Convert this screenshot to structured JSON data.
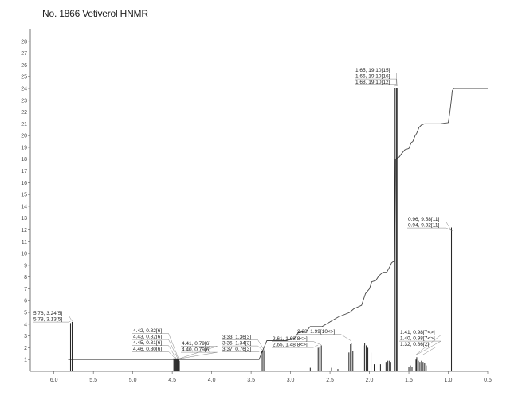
{
  "title": "No. 1866 Vetiverol HNMR",
  "chart_data": {
    "type": "line",
    "title": "No. 1866 Vetiverol HNMR",
    "xlabel": "",
    "ylabel": "",
    "xlim": [
      6.3,
      0.5
    ],
    "ylim": [
      0,
      29
    ],
    "x_ticks": [
      "6.0",
      "5.5",
      "5.0",
      "4.5",
      "4.0",
      "3.5",
      "3.0",
      "2.5",
      "2.0",
      "1.5",
      "1.0",
      "0.5"
    ],
    "y_ticks": [
      "1",
      "2",
      "3",
      "4",
      "5",
      "6",
      "7",
      "8",
      "9",
      "10",
      "11",
      "12",
      "13",
      "14",
      "15",
      "16",
      "17",
      "18",
      "19",
      "20",
      "21",
      "22",
      "23",
      "24",
      "25",
      "26",
      "27",
      "28"
    ],
    "grid": false,
    "peaks": [
      {
        "x": 5.79,
        "y": 4.1
      },
      {
        "x": 5.77,
        "y": 4.2
      },
      {
        "x": 4.48,
        "y": 1.1
      },
      {
        "x": 4.47,
        "y": 1.0
      },
      {
        "x": 4.46,
        "y": 1.1
      },
      {
        "x": 4.45,
        "y": 1.0
      },
      {
        "x": 4.44,
        "y": 1.1
      },
      {
        "x": 4.43,
        "y": 1.0
      },
      {
        "x": 4.42,
        "y": 1.0
      },
      {
        "x": 4.41,
        "y": 0.9
      },
      {
        "x": 3.37,
        "y": 1.7
      },
      {
        "x": 3.35,
        "y": 1.8
      },
      {
        "x": 3.33,
        "y": 1.7
      },
      {
        "x": 2.75,
        "y": 0.3
      },
      {
        "x": 2.65,
        "y": 2.0
      },
      {
        "x": 2.63,
        "y": 2.1
      },
      {
        "x": 2.61,
        "y": 2.2
      },
      {
        "x": 2.48,
        "y": 0.3
      },
      {
        "x": 2.4,
        "y": 0.2
      },
      {
        "x": 2.26,
        "y": 1.6
      },
      {
        "x": 2.24,
        "y": 2.3
      },
      {
        "x": 2.23,
        "y": 2.4
      },
      {
        "x": 2.21,
        "y": 1.7
      },
      {
        "x": 2.08,
        "y": 2.2
      },
      {
        "x": 2.06,
        "y": 2.4
      },
      {
        "x": 2.04,
        "y": 2.2
      },
      {
        "x": 2.02,
        "y": 2.0
      },
      {
        "x": 1.98,
        "y": 1.6
      },
      {
        "x": 1.94,
        "y": 0.6
      },
      {
        "x": 1.86,
        "y": 0.6
      },
      {
        "x": 1.79,
        "y": 0.8
      },
      {
        "x": 1.77,
        "y": 0.9
      },
      {
        "x": 1.75,
        "y": 0.9
      },
      {
        "x": 1.73,
        "y": 0.8
      },
      {
        "x": 1.68,
        "y": 24.0
      },
      {
        "x": 1.66,
        "y": 24.0
      },
      {
        "x": 1.65,
        "y": 24.0
      },
      {
        "x": 1.5,
        "y": 0.4
      },
      {
        "x": 1.48,
        "y": 0.5
      },
      {
        "x": 1.46,
        "y": 0.4
      },
      {
        "x": 1.41,
        "y": 1.0
      },
      {
        "x": 1.4,
        "y": 1.2
      },
      {
        "x": 1.38,
        "y": 0.9
      },
      {
        "x": 1.36,
        "y": 0.8
      },
      {
        "x": 1.34,
        "y": 0.9
      },
      {
        "x": 1.32,
        "y": 0.8
      },
      {
        "x": 1.3,
        "y": 0.7
      },
      {
        "x": 1.28,
        "y": 0.5
      },
      {
        "x": 0.96,
        "y": 12.2
      },
      {
        "x": 0.94,
        "y": 11.9
      }
    ],
    "integral": [
      [
        5.82,
        1.0
      ],
      [
        5.76,
        1.0
      ],
      [
        4.49,
        1.0
      ],
      [
        4.4,
        1.0
      ],
      [
        3.65,
        1.0
      ],
      [
        3.6,
        1.0
      ],
      [
        3.4,
        1.0
      ],
      [
        3.3,
        2.6
      ],
      [
        3.05,
        2.6
      ],
      [
        2.95,
        2.8
      ],
      [
        2.9,
        3.3
      ],
      [
        2.8,
        3.4
      ],
      [
        2.75,
        3.8
      ],
      [
        2.6,
        3.8
      ],
      [
        2.5,
        4.2
      ],
      [
        2.4,
        4.6
      ],
      [
        2.25,
        5.0
      ],
      [
        2.2,
        5.3
      ],
      [
        2.1,
        5.6
      ],
      [
        2.05,
        6.6
      ],
      [
        2.0,
        7.0
      ],
      [
        1.97,
        7.6
      ],
      [
        1.92,
        7.7
      ],
      [
        1.88,
        8.1
      ],
      [
        1.83,
        8.4
      ],
      [
        1.78,
        8.4
      ],
      [
        1.74,
        8.9
      ],
      [
        1.72,
        9.2
      ],
      [
        1.7,
        9.3
      ],
      [
        1.68,
        9.3
      ],
      [
        1.67,
        18.0
      ],
      [
        1.62,
        18.2
      ],
      [
        1.6,
        18.4
      ],
      [
        1.55,
        18.8
      ],
      [
        1.5,
        18.9
      ],
      [
        1.47,
        19.4
      ],
      [
        1.45,
        19.5
      ],
      [
        1.42,
        20.0
      ],
      [
        1.4,
        20.2
      ],
      [
        1.37,
        20.7
      ],
      [
        1.34,
        20.9
      ],
      [
        1.3,
        21.0
      ],
      [
        1.1,
        21.0
      ],
      [
        1.0,
        21.1
      ],
      [
        0.98,
        22.0
      ],
      [
        0.96,
        23.1
      ],
      [
        0.95,
        23.8
      ],
      [
        0.93,
        24.0
      ],
      [
        0.5,
        24.0
      ]
    ],
    "annotations": [
      {
        "text": "5.76, 3.24[5]",
        "x": 5.77
      },
      {
        "text": "5.78, 3.13[5]",
        "x": 5.79
      },
      {
        "text": "4.42, 0.82[6]",
        "x": 4.42
      },
      {
        "text": "4.43, 0.82[6]",
        "x": 4.43
      },
      {
        "text": "4.45, 0.81[6]",
        "x": 4.45
      },
      {
        "text": "4.46, 0.80[6]",
        "x": 4.46
      },
      {
        "text": "4.41, 0.79[6]",
        "x": 4.41
      },
      {
        "text": "4.40, 0.79[6]",
        "x": 4.4
      },
      {
        "text": "3.33, 1.36[3]",
        "x": 3.33
      },
      {
        "text": "3.35, 1.34[3]",
        "x": 3.35
      },
      {
        "text": "3.37, 0.76[3]",
        "x": 3.37
      },
      {
        "text": "2.23, 1.99[10<>]",
        "x": 2.23
      },
      {
        "text": "2.61, 1.68[8<>]",
        "x": 2.61
      },
      {
        "text": "2.65, 1.48[8<>]",
        "x": 2.65
      },
      {
        "text": "1.65, 19.10[15]",
        "x": 1.65
      },
      {
        "text": "1.66, 19.10[16]",
        "x": 1.66
      },
      {
        "text": "1.68, 19.10[12]",
        "x": 1.68
      },
      {
        "text": "0.96, 9.58[11]",
        "x": 0.96
      },
      {
        "text": "0.94, 9.32[11]",
        "x": 0.94
      },
      {
        "text": "1.41, 0.98[7<>]",
        "x": 1.41
      },
      {
        "text": "1.40, 0.98[7<>]",
        "x": 1.4
      },
      {
        "text": "1.32, 0.86[2]",
        "x": 1.32
      }
    ],
    "colors": {
      "spectrum": "#222222",
      "integral": "#444444",
      "axis": "#555555"
    }
  }
}
